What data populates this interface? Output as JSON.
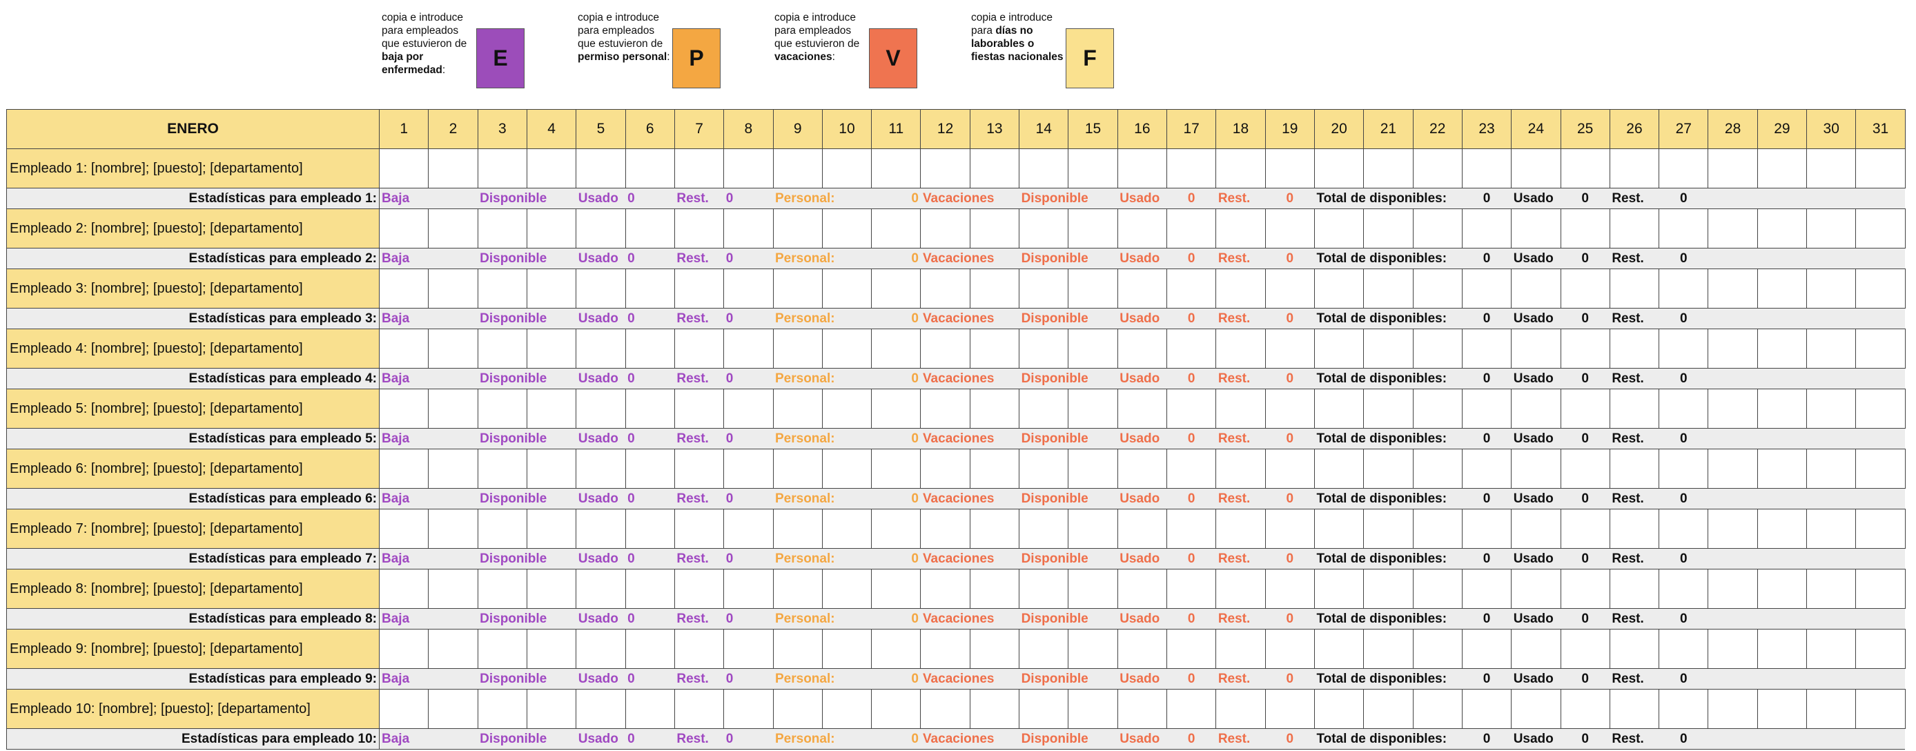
{
  "legend": [
    {
      "intro": "copia e introduce para empleados que estuvieron de ",
      "bold": "baja por enfermedad",
      "suffix": ":",
      "letter": "E",
      "color": "#9c4dba"
    },
    {
      "intro": "copia e introduce para empleados que estuvieron de ",
      "bold": "permiso personal",
      "suffix": ":",
      "letter": "P",
      "color": "#f4a742"
    },
    {
      "intro": "copia e introduce para empleados que estuvieron de ",
      "bold": "vacaciones",
      "suffix": ":",
      "letter": "V",
      "color": "#ef7450"
    },
    {
      "intro": "copia e introduce para ",
      "bold": "días no laborables o fiestas nacionales",
      "suffix": "",
      "letter": "F",
      "color": "#fae18f"
    }
  ],
  "table": {
    "month": "ENERO",
    "days": [
      1,
      2,
      3,
      4,
      5,
      6,
      7,
      8,
      9,
      10,
      11,
      12,
      13,
      14,
      15,
      16,
      17,
      18,
      19,
      20,
      21,
      22,
      23,
      24,
      25,
      26,
      27,
      28,
      29,
      30,
      31
    ],
    "stats_headers": [
      "Baja",
      "Disponible",
      "Usado",
      "Rest.",
      "Personal:",
      "Vacaciones",
      "Disponible",
      "Usado",
      "Rest.",
      "Total de disponibles:",
      "Usado",
      "Rest."
    ],
    "employees": [
      {
        "name": "Empleado 1: [nombre]; [puesto]; [departamento]",
        "stats_label": "Estadísticas para empleado 1:",
        "stats": [
          0,
          0,
          0,
          0,
          0,
          0,
          0,
          0
        ]
      },
      {
        "name": "Empleado 2: [nombre]; [puesto]; [departamento]",
        "stats_label": "Estadísticas para empleado 2:",
        "stats": [
          0,
          0,
          0,
          0,
          0,
          0,
          0,
          0
        ]
      },
      {
        "name": "Empleado 3: [nombre]; [puesto]; [departamento]",
        "stats_label": "Estadísticas para empleado 3:",
        "stats": [
          0,
          0,
          0,
          0,
          0,
          0,
          0,
          0
        ]
      },
      {
        "name": "Empleado 4: [nombre]; [puesto]; [departamento]",
        "stats_label": "Estadísticas para empleado 4:",
        "stats": [
          0,
          0,
          0,
          0,
          0,
          0,
          0,
          0
        ]
      },
      {
        "name": "Empleado 5: [nombre]; [puesto]; [departamento]",
        "stats_label": "Estadísticas para empleado 5:",
        "stats": [
          0,
          0,
          0,
          0,
          0,
          0,
          0,
          0
        ]
      },
      {
        "name": "Empleado 6: [nombre]; [puesto]; [departamento]",
        "stats_label": "Estadísticas para empleado 6:",
        "stats": [
          0,
          0,
          0,
          0,
          0,
          0,
          0,
          0
        ]
      },
      {
        "name": "Empleado 7: [nombre]; [puesto]; [departamento]",
        "stats_label": "Estadísticas para empleado 7:",
        "stats": [
          0,
          0,
          0,
          0,
          0,
          0,
          0,
          0
        ]
      },
      {
        "name": "Empleado 8: [nombre]; [puesto]; [departamento]",
        "stats_label": "Estadísticas para empleado 8:",
        "stats": [
          0,
          0,
          0,
          0,
          0,
          0,
          0,
          0
        ]
      },
      {
        "name": "Empleado 9: [nombre]; [puesto]; [departamento]",
        "stats_label": "Estadísticas para empleado 9:",
        "stats": [
          0,
          0,
          0,
          0,
          0,
          0,
          0,
          0
        ]
      },
      {
        "name": "Empleado 10: [nombre]; [puesto]; [departamento]",
        "stats_label": "Estadísticas para empleado 10:",
        "stats": [
          0,
          0,
          0,
          0,
          0,
          0,
          0,
          0
        ]
      }
    ]
  }
}
